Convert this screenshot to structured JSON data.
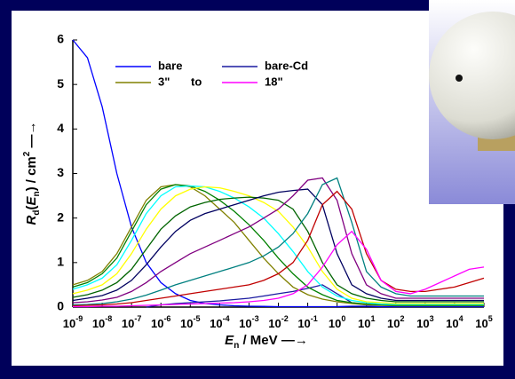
{
  "chart_data": {
    "type": "line",
    "x_label": [
      "E",
      "n",
      " / MeV",
      " —→"
    ],
    "y_label": [
      "R",
      "d",
      "(",
      "E",
      "n",
      ") / cm",
      "2",
      " —→"
    ],
    "log_x": true,
    "x": [
      1e-09,
      3.16e-09,
      1e-08,
      3.16e-08,
      1e-07,
      3.16e-07,
      1e-06,
      3.16e-06,
      1e-05,
      3.16e-05,
      0.0001,
      0.000316,
      0.001,
      0.00316,
      0.01,
      0.0316,
      0.1,
      0.316,
      1,
      3.16,
      10,
      31.6,
      100,
      316,
      1000,
      3160,
      10000,
      31600,
      100000
    ],
    "xlim": [
      1e-09,
      100000
    ],
    "xticks": [
      {
        "value": 1e-09,
        "label": "10",
        "exponent": "-9"
      },
      {
        "value": 1e-08,
        "label": "10",
        "exponent": "-8"
      },
      {
        "value": 1e-07,
        "label": "10",
        "exponent": "-7"
      },
      {
        "value": 1e-06,
        "label": "10",
        "exponent": "-6"
      },
      {
        "value": 1e-05,
        "label": "10",
        "exponent": "-5"
      },
      {
        "value": 0.0001,
        "label": "10",
        "exponent": "-4"
      },
      {
        "value": 0.001,
        "label": "10",
        "exponent": "-3"
      },
      {
        "value": 0.01,
        "label": "10",
        "exponent": "-2"
      },
      {
        "value": 0.1,
        "label": "10",
        "exponent": "-1"
      },
      {
        "value": 1,
        "label": "10",
        "exponent": "0"
      },
      {
        "value": 10,
        "label": "10",
        "exponent": "1"
      },
      {
        "value": 100,
        "label": "10",
        "exponent": "2"
      },
      {
        "value": 1000,
        "label": "10",
        "exponent": "3"
      },
      {
        "value": 10000,
        "label": "10",
        "exponent": "4"
      },
      {
        "value": 100000,
        "label": "10",
        "exponent": "5"
      }
    ],
    "ylim": [
      0,
      6
    ],
    "yticks": [
      0,
      1,
      2,
      3,
      4,
      5,
      6
    ],
    "legend_note": "to",
    "series": [
      {
        "name": "bare",
        "color": "#0000ff",
        "values": [
          6,
          5.6,
          4.5,
          3.0,
          1.8,
          1.0,
          0.55,
          0.3,
          0.15,
          0.08,
          0.05,
          0.03,
          0.02,
          0.015,
          0.01,
          0.01,
          0.01,
          0.01,
          0.01,
          0.02,
          0.02,
          0.01,
          0.01,
          0.01,
          0.01,
          0.01,
          0.01,
          0.01,
          0.01
        ]
      },
      {
        "name": "bare-Cd",
        "color": "#1a1aa0",
        "values": [
          null,
          null,
          null,
          null,
          null,
          0,
          0.05,
          0.08,
          0.1,
          0.12,
          0.14,
          0.17,
          0.2,
          0.25,
          0.3,
          0.35,
          0.42,
          0.5,
          0.3,
          0.1,
          0.05,
          0.05,
          0.05,
          0.05,
          0.05,
          0.05,
          0.05,
          0.05,
          0.05
        ]
      },
      {
        "name": "3\"",
        "color": "#808000",
        "values": [
          0.5,
          0.6,
          0.8,
          1.2,
          1.8,
          2.4,
          2.7,
          2.75,
          2.7,
          2.5,
          2.2,
          1.9,
          1.5,
          1.1,
          0.75,
          0.45,
          0.28,
          0.18,
          0.12,
          0.08,
          0.05,
          0.04,
          0.03,
          0.03,
          0.03,
          0.03,
          0.03,
          0.03,
          0.03
        ]
      },
      {
        "color": "#008000",
        "values": [
          0.45,
          0.55,
          0.75,
          1.1,
          1.7,
          2.3,
          2.65,
          2.75,
          2.72,
          2.6,
          2.4,
          2.15,
          1.85,
          1.5,
          1.1,
          0.75,
          0.45,
          0.28,
          0.15,
          0.1,
          0.07,
          0.05,
          0.04,
          0.04,
          0.04,
          0.04,
          0.04,
          0.04,
          0.04
        ]
      },
      {
        "color": "#00ffff",
        "values": [
          0.4,
          0.5,
          0.65,
          0.95,
          1.5,
          2.1,
          2.5,
          2.7,
          2.72,
          2.7,
          2.6,
          2.45,
          2.25,
          2.0,
          1.65,
          1.25,
          0.8,
          0.45,
          0.25,
          0.15,
          0.1,
          0.07,
          0.06,
          0.06,
          0.06,
          0.06,
          0.06,
          0.06,
          0.06
        ]
      },
      {
        "color": "#ffff00",
        "values": [
          0.3,
          0.38,
          0.5,
          0.75,
          1.2,
          1.75,
          2.2,
          2.5,
          2.65,
          2.7,
          2.68,
          2.6,
          2.5,
          2.35,
          2.15,
          1.8,
          1.35,
          0.8,
          0.4,
          0.2,
          0.12,
          0.1,
          0.08,
          0.08,
          0.08,
          0.08,
          0.08,
          0.08,
          0.08
        ]
      },
      {
        "color": "#006400",
        "values": [
          0.22,
          0.28,
          0.38,
          0.55,
          0.85,
          1.3,
          1.75,
          2.05,
          2.25,
          2.35,
          2.42,
          2.45,
          2.47,
          2.45,
          2.4,
          2.2,
          1.7,
          1.0,
          0.5,
          0.3,
          0.2,
          0.15,
          0.12,
          0.12,
          0.12,
          0.12,
          0.12,
          0.12,
          0.12
        ]
      },
      {
        "color": "#000060",
        "values": [
          0.15,
          0.2,
          0.26,
          0.38,
          0.6,
          0.95,
          1.35,
          1.7,
          1.95,
          2.1,
          2.2,
          2.3,
          2.4,
          2.5,
          2.58,
          2.62,
          2.65,
          2.3,
          1.2,
          0.5,
          0.3,
          0.2,
          0.15,
          0.15,
          0.15,
          0.15,
          0.15,
          0.15,
          0.15
        ]
      },
      {
        "color": "#800080",
        "values": [
          0.1,
          0.12,
          0.16,
          0.22,
          0.35,
          0.55,
          0.8,
          1.0,
          1.2,
          1.35,
          1.5,
          1.65,
          1.8,
          2.0,
          2.2,
          2.5,
          2.85,
          2.9,
          2.4,
          1.2,
          0.5,
          0.3,
          0.2,
          0.2,
          0.2,
          0.2,
          0.2,
          0.2,
          0.2
        ]
      },
      {
        "color": "#008080",
        "values": [
          0.05,
          0.06,
          0.08,
          0.12,
          0.18,
          0.27,
          0.38,
          0.5,
          0.6,
          0.7,
          0.8,
          0.9,
          1.0,
          1.15,
          1.35,
          1.65,
          2.1,
          2.75,
          2.9,
          1.9,
          0.8,
          0.45,
          0.3,
          0.25,
          0.25,
          0.25,
          0.25,
          0.25,
          0.25
        ]
      },
      {
        "color": "#c00000",
        "values": [
          0.03,
          0.04,
          0.05,
          0.07,
          0.1,
          0.15,
          0.2,
          0.25,
          0.3,
          0.35,
          0.4,
          0.45,
          0.5,
          0.6,
          0.75,
          1.0,
          1.5,
          2.3,
          2.6,
          2.2,
          1.2,
          0.6,
          0.4,
          0.35,
          0.35,
          0.4,
          0.45,
          0.55,
          0.65
        ]
      },
      {
        "name": "18\"",
        "color": "#ff00ff",
        "values": [
          0.01,
          0.01,
          0.02,
          0.02,
          0.03,
          0.04,
          0.05,
          0.06,
          0.07,
          0.08,
          0.09,
          0.1,
          0.12,
          0.15,
          0.2,
          0.3,
          0.5,
          0.9,
          1.4,
          1.7,
          1.3,
          0.6,
          0.35,
          0.3,
          0.4,
          0.55,
          0.7,
          0.85,
          0.9
        ]
      }
    ]
  }
}
